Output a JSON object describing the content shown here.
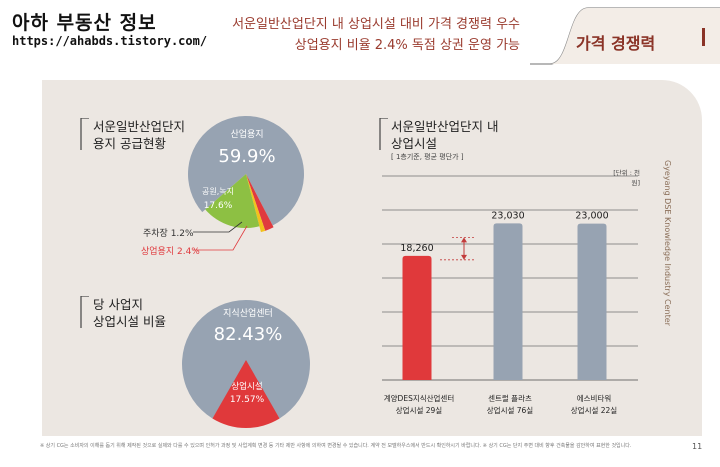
{
  "brand": {
    "title": "아하 부동산 정보",
    "url": "https://ahabds.tistory.com/"
  },
  "headline": {
    "line1": "서운일반산업단지 내 상업시설 대비 가격 경쟁력 우수",
    "line2": "상업용지 비율 2.4% 독점 상권 운영 가능"
  },
  "section_tab": "가격 경쟁력",
  "side_caption": "Gyeyang DSE Knowledge Industry Center",
  "left_top": {
    "title_line1": "서운일반산업단지",
    "title_line2": "용지 공급현황",
    "pie_labels": {
      "industrial_name": "산업용지",
      "industrial_value": "59.9%",
      "park_name": "공원,녹지",
      "park_value": "17.6%",
      "parking": "주차장  1.2%",
      "commercial": "상업용지  2.4%"
    }
  },
  "left_bottom": {
    "title_line1": "당 사업지",
    "title_line2": "상업시설 비율",
    "pie_labels": {
      "center_name": "지식산업센터",
      "center_value": "82.43%",
      "comm_name": "상업시설",
      "comm_value": "17.57%"
    }
  },
  "bar_section": {
    "title_line1": "서운일반산업단지 내",
    "title_line2": "상업시설",
    "subtitle": "[ 1층기준, 평균 평단가 ]",
    "unit": "[단위 : 천원]"
  },
  "chart_data": [
    {
      "type": "pie",
      "title": "서운일반산업단지 용지 공급현황",
      "categories": [
        "산업용지",
        "공원,녹지",
        "주차장",
        "상업용지"
      ],
      "values": [
        59.9,
        17.6,
        1.2,
        2.4
      ],
      "colors": [
        "#97a3b2",
        "#8dc043",
        "#f2c21c",
        "#e03a3e"
      ]
    },
    {
      "type": "pie",
      "title": "당 사업지 상업시설 비율",
      "categories": [
        "지식산업센터",
        "상업시설"
      ],
      "values": [
        82.43,
        17.57
      ],
      "colors": [
        "#97a3b2",
        "#e0393b"
      ]
    },
    {
      "type": "bar",
      "title": "서운일반산업단지 내 상업시설",
      "subtitle": "[ 1층기준, 평균 평단가 ]",
      "unit": "[단위 : 천원]",
      "categories": [
        "계양DES지식산업센터\n상업시설 29실",
        "센트럴 플라츠\n상업시설 76실",
        "에스비타워\n상업시설 22실"
      ],
      "values": [
        18260,
        23030,
        23000
      ],
      "value_labels": [
        "18,260",
        "23,030",
        "23,000"
      ],
      "colors": [
        "#e0393b",
        "#97a3b2",
        "#97a3b2"
      ],
      "ylim": [
        0,
        30000
      ],
      "grid": true
    }
  ],
  "footer_note": "※ 상기 CG는 소비자의 이해를 돕기 위해 제작된 것으로 실제와 다를 수 있으며 인허가 과정 및 사업계획 변경 등 기타 제반 사항에 의하여 변경될 수 있습니다. 계약 전 모델하우스에서 반드시 확인하시기 바랍니다. ※ 상기 CG는 단지 주변 대비 향후 건축물을 감안하여 표현한 것입니다.",
  "page_number": "11"
}
